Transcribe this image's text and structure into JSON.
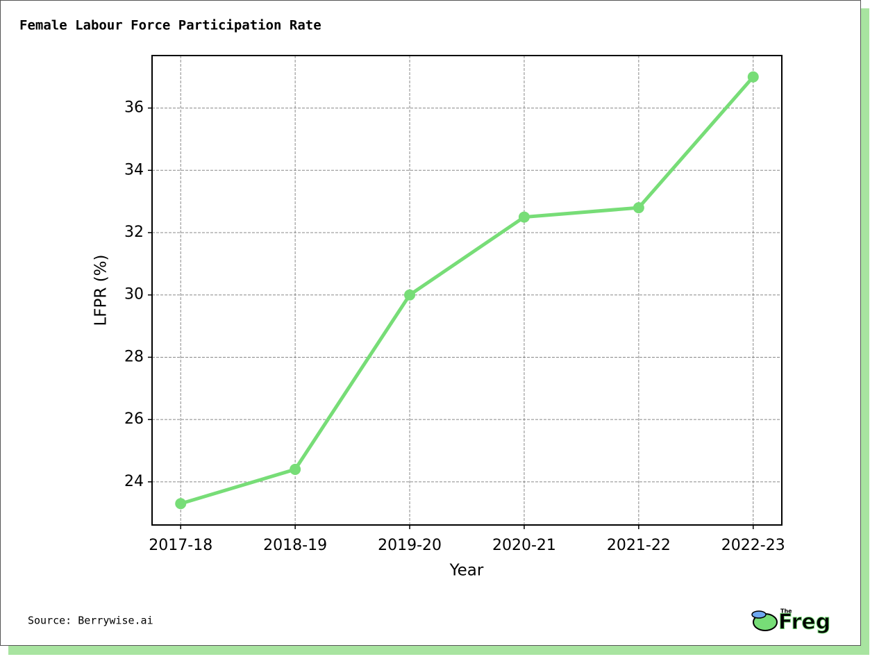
{
  "chart_data": {
    "type": "line",
    "title": "Female Labour Force Participation Rate",
    "x_label": "Year",
    "y_label": "LFPR (%)",
    "categories": [
      "2017-18",
      "2018-19",
      "2019-20",
      "2020-21",
      "2021-22",
      "2022-23"
    ],
    "series": [
      {
        "name": "LFPR (%)",
        "color": "#77dd77",
        "values": [
          23.3,
          24.4,
          30.0,
          32.5,
          32.8,
          37.0
        ]
      }
    ],
    "ylim": [
      22.615,
      37.685
    ],
    "yticks": [
      24,
      26,
      28,
      30,
      32,
      34,
      36
    ],
    "grid": true
  },
  "footer": {
    "source": "Source: Berrywise.ai",
    "logo_small": "The",
    "logo_name": "Freg"
  }
}
